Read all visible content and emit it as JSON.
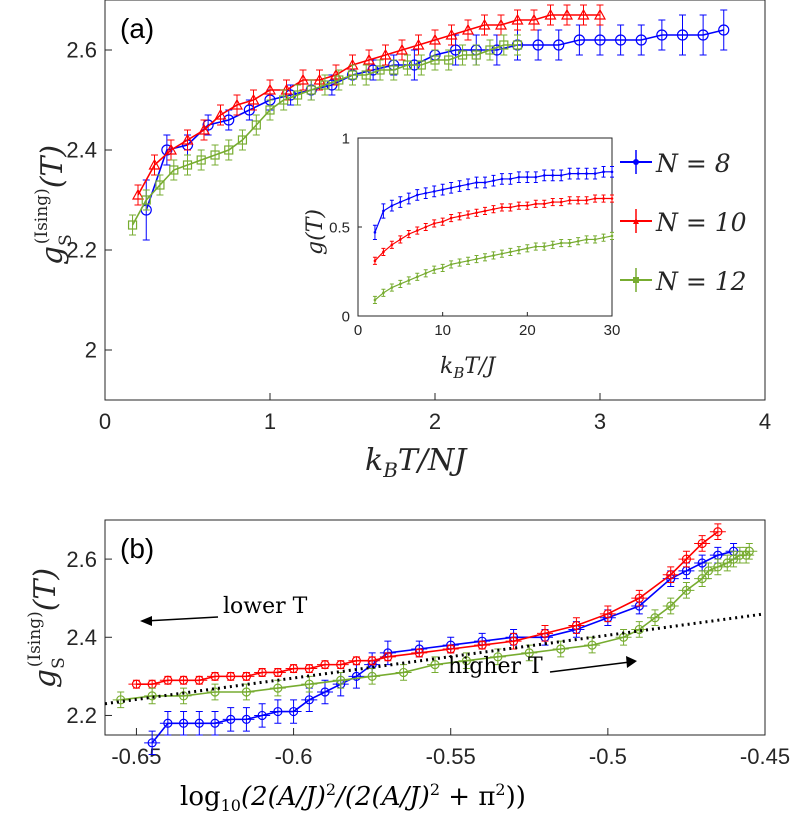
{
  "chart_data": [
    {
      "panel": "(a)",
      "type": "line",
      "xlabel": "k_B T/NJ",
      "ylabel": "g_S^(Ising)(T)",
      "xlim": [
        0,
        4
      ],
      "ylim": [
        1.9,
        2.7
      ],
      "xticks": [
        "0",
        "1",
        "2",
        "3",
        "4"
      ],
      "yticks": [
        "2",
        "2.2",
        "2.4",
        "2.6"
      ],
      "series": [
        {
          "name": "N = 8",
          "color": "#0000ff",
          "marker": "circle",
          "x": [
            0.25,
            0.375,
            0.5,
            0.625,
            0.75,
            0.875,
            1.0,
            1.125,
            1.25,
            1.375,
            1.5,
            1.625,
            1.75,
            1.875,
            2.0,
            2.125,
            2.25,
            2.375,
            2.5,
            2.625,
            2.75,
            2.875,
            3.0,
            3.125,
            3.25,
            3.375,
            3.5,
            3.625,
            3.75
          ],
          "y": [
            2.28,
            2.4,
            2.41,
            2.45,
            2.46,
            2.48,
            2.5,
            2.51,
            2.52,
            2.53,
            2.55,
            2.56,
            2.57,
            2.57,
            2.59,
            2.6,
            2.6,
            2.6,
            2.61,
            2.61,
            2.61,
            2.62,
            2.62,
            2.62,
            2.62,
            2.63,
            2.63,
            2.63,
            2.64
          ],
          "err": [
            0.06,
            0.03,
            0.02,
            0.02,
            0.02,
            0.02,
            0.02,
            0.02,
            0.02,
            0.02,
            0.02,
            0.02,
            0.02,
            0.03,
            0.03,
            0.03,
            0.03,
            0.03,
            0.03,
            0.03,
            0.03,
            0.03,
            0.03,
            0.03,
            0.03,
            0.03,
            0.04,
            0.04,
            0.04
          ]
        },
        {
          "name": "N = 10",
          "color": "#ff0000",
          "marker": "triangle",
          "x": [
            0.2,
            0.3,
            0.4,
            0.5,
            0.6,
            0.7,
            0.8,
            0.9,
            1.0,
            1.1,
            1.2,
            1.3,
            1.4,
            1.5,
            1.6,
            1.7,
            1.8,
            1.9,
            2.0,
            2.1,
            2.2,
            2.3,
            2.4,
            2.5,
            2.6,
            2.7,
            2.8,
            2.9,
            3.0
          ],
          "y": [
            2.31,
            2.37,
            2.4,
            2.42,
            2.44,
            2.47,
            2.49,
            2.5,
            2.52,
            2.52,
            2.54,
            2.54,
            2.55,
            2.57,
            2.58,
            2.59,
            2.6,
            2.61,
            2.62,
            2.63,
            2.64,
            2.65,
            2.65,
            2.66,
            2.66,
            2.67,
            2.67,
            2.67,
            2.67
          ],
          "err": [
            0.02,
            0.02,
            0.02,
            0.02,
            0.02,
            0.02,
            0.02,
            0.02,
            0.02,
            0.02,
            0.02,
            0.02,
            0.02,
            0.02,
            0.02,
            0.02,
            0.02,
            0.02,
            0.02,
            0.02,
            0.02,
            0.02,
            0.02,
            0.02,
            0.02,
            0.02,
            0.02,
            0.02,
            0.02
          ]
        },
        {
          "name": "N = 12",
          "color": "#77ac30",
          "marker": "square",
          "x": [
            0.167,
            0.25,
            0.333,
            0.417,
            0.5,
            0.583,
            0.667,
            0.75,
            0.833,
            0.917,
            1.0,
            1.083,
            1.167,
            1.25,
            1.333,
            1.417,
            1.5,
            1.583,
            1.667,
            1.75,
            1.833,
            1.917,
            2.0,
            2.083,
            2.167,
            2.25,
            2.333,
            2.417,
            2.5
          ],
          "y": [
            2.25,
            2.3,
            2.33,
            2.36,
            2.37,
            2.38,
            2.39,
            2.4,
            2.42,
            2.45,
            2.48,
            2.5,
            2.51,
            2.52,
            2.53,
            2.54,
            2.55,
            2.55,
            2.56,
            2.56,
            2.57,
            2.57,
            2.58,
            2.58,
            2.59,
            2.59,
            2.6,
            2.61,
            2.61
          ],
          "err": [
            0.02,
            0.02,
            0.02,
            0.02,
            0.02,
            0.02,
            0.02,
            0.02,
            0.02,
            0.02,
            0.02,
            0.02,
            0.02,
            0.02,
            0.02,
            0.02,
            0.02,
            0.02,
            0.02,
            0.02,
            0.02,
            0.02,
            0.02,
            0.02,
            0.02,
            0.02,
            0.02,
            0.02,
            0.02
          ]
        }
      ]
    },
    {
      "panel": "inset",
      "type": "line",
      "xlabel": "k_B T/J",
      "ylabel": "g(T)",
      "xlim": [
        0,
        30
      ],
      "ylim": [
        0,
        1
      ],
      "xticks": [
        "0",
        "10",
        "20",
        "30"
      ],
      "yticks": [
        "0",
        "0.5",
        "1"
      ],
      "series": [
        {
          "name": "N = 8",
          "color": "#0000ff",
          "x": [
            2,
            3,
            4,
            5,
            6,
            7,
            8,
            9,
            10,
            11,
            12,
            13,
            14,
            15,
            16,
            17,
            18,
            19,
            20,
            21,
            22,
            23,
            24,
            25,
            26,
            27,
            28,
            29,
            30
          ],
          "y": [
            0.47,
            0.59,
            0.62,
            0.64,
            0.66,
            0.68,
            0.69,
            0.7,
            0.71,
            0.72,
            0.73,
            0.74,
            0.75,
            0.75,
            0.76,
            0.77,
            0.77,
            0.78,
            0.78,
            0.78,
            0.79,
            0.79,
            0.79,
            0.8,
            0.8,
            0.8,
            0.8,
            0.81,
            0.81
          ],
          "err": [
            0.04,
            0.04,
            0.03,
            0.03,
            0.03,
            0.03,
            0.03,
            0.03,
            0.03,
            0.03,
            0.03,
            0.03,
            0.03,
            0.03,
            0.03,
            0.03,
            0.03,
            0.03,
            0.03,
            0.03,
            0.03,
            0.03,
            0.03,
            0.03,
            0.03,
            0.03,
            0.03,
            0.03,
            0.03
          ]
        },
        {
          "name": "N = 10",
          "color": "#ff0000",
          "x": [
            2,
            3,
            4,
            5,
            6,
            7,
            8,
            9,
            10,
            11,
            12,
            13,
            14,
            15,
            16,
            17,
            18,
            19,
            20,
            21,
            22,
            23,
            24,
            25,
            26,
            27,
            28,
            29,
            30
          ],
          "y": [
            0.31,
            0.36,
            0.4,
            0.43,
            0.46,
            0.48,
            0.5,
            0.52,
            0.53,
            0.55,
            0.56,
            0.57,
            0.58,
            0.59,
            0.6,
            0.61,
            0.61,
            0.62,
            0.62,
            0.63,
            0.63,
            0.64,
            0.64,
            0.65,
            0.65,
            0.65,
            0.66,
            0.66,
            0.66
          ],
          "err": [
            0.02,
            0.02,
            0.02,
            0.02,
            0.02,
            0.02,
            0.02,
            0.02,
            0.02,
            0.02,
            0.02,
            0.02,
            0.02,
            0.02,
            0.02,
            0.02,
            0.02,
            0.02,
            0.02,
            0.02,
            0.02,
            0.02,
            0.02,
            0.02,
            0.02,
            0.02,
            0.02,
            0.02,
            0.02
          ]
        },
        {
          "name": "N = 12",
          "color": "#77ac30",
          "x": [
            2,
            3,
            4,
            5,
            6,
            7,
            8,
            9,
            10,
            11,
            12,
            13,
            14,
            15,
            16,
            17,
            18,
            19,
            20,
            21,
            22,
            23,
            24,
            25,
            26,
            27,
            28,
            29,
            30
          ],
          "y": [
            0.09,
            0.13,
            0.16,
            0.18,
            0.2,
            0.22,
            0.24,
            0.26,
            0.27,
            0.29,
            0.3,
            0.31,
            0.32,
            0.33,
            0.34,
            0.35,
            0.36,
            0.37,
            0.38,
            0.39,
            0.39,
            0.4,
            0.41,
            0.41,
            0.42,
            0.43,
            0.43,
            0.44,
            0.45
          ],
          "err": [
            0.02,
            0.02,
            0.02,
            0.02,
            0.02,
            0.02,
            0.02,
            0.02,
            0.02,
            0.02,
            0.02,
            0.02,
            0.02,
            0.02,
            0.02,
            0.02,
            0.02,
            0.02,
            0.02,
            0.02,
            0.02,
            0.02,
            0.02,
            0.02,
            0.02,
            0.02,
            0.02,
            0.02,
            0.02
          ]
        }
      ]
    },
    {
      "panel": "(b)",
      "type": "line",
      "xlabel": "log10(2(A/J)^2/(2(A/J)^2+π^2))",
      "ylabel": "g_S^(Ising)(T)",
      "xlim": [
        -0.66,
        -0.45
      ],
      "ylim": [
        2.15,
        2.7
      ],
      "xticks": [
        "-0.65",
        "-0.6",
        "-0.55",
        "-0.5",
        "-0.45"
      ],
      "yticks": [
        "2.2",
        "2.4",
        "2.6"
      ],
      "annotations": [
        "lower T",
        "higher T"
      ],
      "fit_line": {
        "x": [
          -0.66,
          -0.45
        ],
        "y": [
          2.23,
          2.46
        ]
      },
      "series": [
        {
          "name": "N = 8",
          "color": "#0000ff",
          "x": [
            -0.645,
            -0.64,
            -0.635,
            -0.63,
            -0.625,
            -0.62,
            -0.615,
            -0.61,
            -0.605,
            -0.6,
            -0.595,
            -0.59,
            -0.585,
            -0.58,
            -0.575,
            -0.57,
            -0.56,
            -0.55,
            -0.54,
            -0.53,
            -0.52,
            -0.51,
            -0.5,
            -0.49,
            -0.48,
            -0.475,
            -0.47,
            -0.465,
            -0.46
          ],
          "y": [
            2.13,
            2.18,
            2.18,
            2.18,
            2.18,
            2.19,
            2.19,
            2.2,
            2.21,
            2.21,
            2.24,
            2.26,
            2.28,
            2.3,
            2.33,
            2.36,
            2.37,
            2.38,
            2.39,
            2.4,
            2.4,
            2.42,
            2.45,
            2.48,
            2.55,
            2.57,
            2.59,
            2.61,
            2.62
          ],
          "err": [
            0.03,
            0.03,
            0.03,
            0.03,
            0.03,
            0.03,
            0.03,
            0.03,
            0.03,
            0.03,
            0.03,
            0.03,
            0.03,
            0.03,
            0.03,
            0.03,
            0.02,
            0.02,
            0.02,
            0.02,
            0.02,
            0.02,
            0.02,
            0.02,
            0.02,
            0.02,
            0.02,
            0.02,
            0.02
          ]
        },
        {
          "name": "N = 10",
          "color": "#ff0000",
          "x": [
            -0.65,
            -0.645,
            -0.64,
            -0.635,
            -0.63,
            -0.625,
            -0.62,
            -0.615,
            -0.61,
            -0.605,
            -0.6,
            -0.595,
            -0.59,
            -0.585,
            -0.58,
            -0.575,
            -0.57,
            -0.56,
            -0.55,
            -0.54,
            -0.53,
            -0.52,
            -0.51,
            -0.5,
            -0.49,
            -0.48,
            -0.475,
            -0.47,
            -0.465
          ],
          "y": [
            2.28,
            2.28,
            2.29,
            2.29,
            2.29,
            2.3,
            2.3,
            2.3,
            2.31,
            2.31,
            2.32,
            2.32,
            2.33,
            2.33,
            2.34,
            2.34,
            2.35,
            2.36,
            2.37,
            2.38,
            2.39,
            2.41,
            2.43,
            2.46,
            2.5,
            2.56,
            2.6,
            2.64,
            2.67
          ],
          "err": [
            0.01,
            0.01,
            0.01,
            0.01,
            0.01,
            0.01,
            0.01,
            0.01,
            0.01,
            0.01,
            0.01,
            0.01,
            0.01,
            0.01,
            0.01,
            0.01,
            0.01,
            0.01,
            0.01,
            0.01,
            0.02,
            0.02,
            0.02,
            0.02,
            0.02,
            0.02,
            0.02,
            0.02,
            0.02
          ]
        },
        {
          "name": "N = 12",
          "color": "#77ac30",
          "x": [
            -0.655,
            -0.645,
            -0.635,
            -0.625,
            -0.615,
            -0.605,
            -0.595,
            -0.585,
            -0.575,
            -0.565,
            -0.555,
            -0.545,
            -0.535,
            -0.525,
            -0.515,
            -0.505,
            -0.495,
            -0.49,
            -0.485,
            -0.48,
            -0.475,
            -0.47,
            -0.468,
            -0.465,
            -0.462,
            -0.46,
            -0.458,
            -0.456,
            -0.455
          ],
          "y": [
            2.24,
            2.25,
            2.25,
            2.26,
            2.26,
            2.27,
            2.28,
            2.29,
            2.3,
            2.31,
            2.33,
            2.34,
            2.35,
            2.36,
            2.37,
            2.38,
            2.4,
            2.42,
            2.45,
            2.48,
            2.52,
            2.55,
            2.57,
            2.58,
            2.59,
            2.6,
            2.61,
            2.61,
            2.62
          ],
          "err": [
            0.02,
            0.02,
            0.02,
            0.02,
            0.02,
            0.02,
            0.02,
            0.02,
            0.02,
            0.02,
            0.02,
            0.02,
            0.02,
            0.02,
            0.02,
            0.02,
            0.02,
            0.02,
            0.02,
            0.02,
            0.02,
            0.02,
            0.02,
            0.02,
            0.02,
            0.02,
            0.02,
            0.02,
            0.02
          ]
        }
      ]
    }
  ],
  "labels": {
    "panel_a": "(a)",
    "panel_b": "(b)",
    "legend": [
      "N = 8",
      "N = 10",
      "N = 12"
    ],
    "lower_t": "lower T",
    "higher_t": "higher T"
  }
}
